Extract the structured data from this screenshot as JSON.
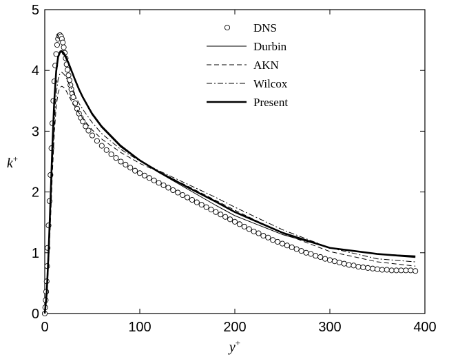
{
  "chart_data": {
    "type": "line",
    "title": "",
    "xlabel": "y",
    "xlabel_sup": "+",
    "ylabel": "k",
    "ylabel_sup": "+",
    "xlim": [
      0,
      400
    ],
    "ylim": [
      0,
      5
    ],
    "xticks": [
      "0",
      "100",
      "200",
      "300",
      "400"
    ],
    "yticks": [
      "0",
      "1",
      "2",
      "3",
      "4",
      "5"
    ],
    "grid": false,
    "legend_position": "top-right",
    "series": [
      {
        "name": "DNS",
        "style": "circles",
        "x": [
          0.0,
          0.5,
          1.0,
          1.5,
          2.0,
          2.5,
          3.0,
          4.0,
          5.0,
          6.0,
          7.0,
          8.0,
          9.0,
          10.0,
          11.0,
          12.0,
          13.0,
          14.0,
          15.0,
          16.0,
          17.0,
          18.0,
          19.0,
          20.0,
          21.0,
          22.0,
          23.0,
          24.0,
          25.0,
          26.0,
          27.0,
          28.0,
          29.0,
          30.0,
          32.0,
          34.0,
          36.0,
          38.0,
          40.0,
          43.0,
          46.0,
          50.0,
          55.0,
          60.0,
          65.0,
          70.0,
          75.0,
          80.0,
          85.0,
          90.0,
          95.0,
          100.0,
          105.0,
          110.0,
          115.0,
          120.0,
          125.0,
          130.0,
          135.0,
          140.0,
          145.0,
          150.0,
          155.0,
          160.0,
          165.0,
          170.0,
          175.0,
          180.0,
          185.0,
          190.0,
          195.0,
          200.0,
          205.0,
          210.0,
          215.0,
          220.0,
          225.0,
          230.0,
          235.0,
          240.0,
          245.0,
          250.0,
          255.0,
          260.0,
          265.0,
          270.0,
          275.0,
          280.0,
          285.0,
          290.0,
          295.0,
          300.0,
          305.0,
          310.0,
          315.0,
          320.0,
          325.0,
          330.0,
          335.0,
          340.0,
          345.0,
          350.0,
          355.0,
          360.0,
          365.0,
          370.0,
          375.0,
          380.0,
          385.0,
          390.0
        ],
        "y": [
          0.0,
          0.1,
          0.22,
          0.36,
          0.53,
          0.78,
          1.08,
          1.45,
          1.85,
          2.28,
          2.72,
          3.13,
          3.5,
          3.82,
          4.08,
          4.27,
          4.42,
          4.52,
          4.57,
          4.58,
          4.56,
          4.52,
          4.46,
          4.38,
          4.29,
          4.2,
          4.1,
          4.01,
          3.92,
          3.84,
          3.76,
          3.69,
          3.62,
          3.56,
          3.46,
          3.37,
          3.29,
          3.22,
          3.16,
          3.08,
          3.01,
          2.93,
          2.84,
          2.76,
          2.69,
          2.62,
          2.56,
          2.5,
          2.45,
          2.4,
          2.35,
          2.31,
          2.27,
          2.23,
          2.19,
          2.15,
          2.11,
          2.07,
          2.03,
          1.99,
          1.95,
          1.91,
          1.87,
          1.83,
          1.79,
          1.75,
          1.71,
          1.67,
          1.63,
          1.59,
          1.55,
          1.51,
          1.47,
          1.43,
          1.39,
          1.35,
          1.32,
          1.28,
          1.25,
          1.21,
          1.18,
          1.15,
          1.12,
          1.09,
          1.06,
          1.03,
          1.0,
          0.98,
          0.95,
          0.93,
          0.9,
          0.88,
          0.86,
          0.84,
          0.82,
          0.8,
          0.79,
          0.77,
          0.76,
          0.75,
          0.74,
          0.73,
          0.72,
          0.72,
          0.71,
          0.71,
          0.71,
          0.71,
          0.71,
          0.7
        ]
      },
      {
        "name": "Durbin",
        "style": "thin-solid",
        "x": [
          0,
          2,
          4,
          6,
          8,
          10,
          12,
          14,
          16,
          18,
          20,
          22,
          25,
          28,
          32,
          36,
          40,
          50,
          60,
          80,
          100,
          120,
          150,
          180,
          200,
          250,
          300,
          350,
          390
        ],
        "y": [
          0.0,
          0.3,
          0.95,
          1.8,
          2.7,
          3.45,
          3.95,
          4.22,
          4.32,
          4.33,
          4.3,
          4.25,
          4.14,
          4.02,
          3.85,
          3.7,
          3.57,
          3.3,
          3.09,
          2.77,
          2.53,
          2.32,
          2.05,
          1.78,
          1.61,
          1.3,
          1.08,
          0.98,
          0.95
        ]
      },
      {
        "name": "AKN",
        "style": "dashed",
        "x": [
          0,
          2,
          4,
          6,
          8,
          10,
          12,
          14,
          16,
          18,
          20,
          22,
          25,
          28,
          32,
          36,
          40,
          50,
          60,
          80,
          100,
          120,
          150,
          180,
          200,
          250,
          300,
          350,
          390
        ],
        "y": [
          0.0,
          0.25,
          0.8,
          1.5,
          2.3,
          2.95,
          3.4,
          3.63,
          3.72,
          3.74,
          3.72,
          3.68,
          3.59,
          3.5,
          3.4,
          3.3,
          3.21,
          3.02,
          2.87,
          2.65,
          2.47,
          2.33,
          2.1,
          1.86,
          1.7,
          1.32,
          1.02,
          0.85,
          0.78
        ]
      },
      {
        "name": "Wilcox",
        "style": "dash-dot",
        "x": [
          0,
          2,
          4,
          6,
          8,
          10,
          12,
          14,
          16,
          18,
          20,
          22,
          25,
          28,
          32,
          36,
          40,
          50,
          60,
          80,
          100,
          120,
          150,
          180,
          200,
          250,
          300,
          350,
          390
        ],
        "y": [
          0.0,
          0.28,
          0.85,
          1.6,
          2.45,
          3.15,
          3.6,
          3.85,
          3.95,
          3.97,
          3.94,
          3.9,
          3.8,
          3.7,
          3.58,
          3.46,
          3.36,
          3.14,
          2.96,
          2.7,
          2.51,
          2.35,
          2.13,
          1.91,
          1.75,
          1.38,
          1.08,
          0.9,
          0.85
        ]
      },
      {
        "name": "Present",
        "style": "thick-solid",
        "x": [
          0,
          2,
          4,
          6,
          8,
          10,
          12,
          14,
          16,
          18,
          20,
          22,
          25,
          28,
          32,
          36,
          40,
          50,
          60,
          80,
          100,
          120,
          150,
          180,
          200,
          250,
          300,
          350,
          390
        ],
        "y": [
          0.0,
          0.32,
          1.0,
          1.85,
          2.75,
          3.5,
          3.98,
          4.22,
          4.3,
          4.31,
          4.28,
          4.22,
          4.12,
          4.0,
          3.84,
          3.69,
          3.56,
          3.28,
          3.07,
          2.75,
          2.52,
          2.33,
          2.08,
          1.84,
          1.67,
          1.33,
          1.08,
          0.98,
          0.93
        ]
      }
    ]
  }
}
